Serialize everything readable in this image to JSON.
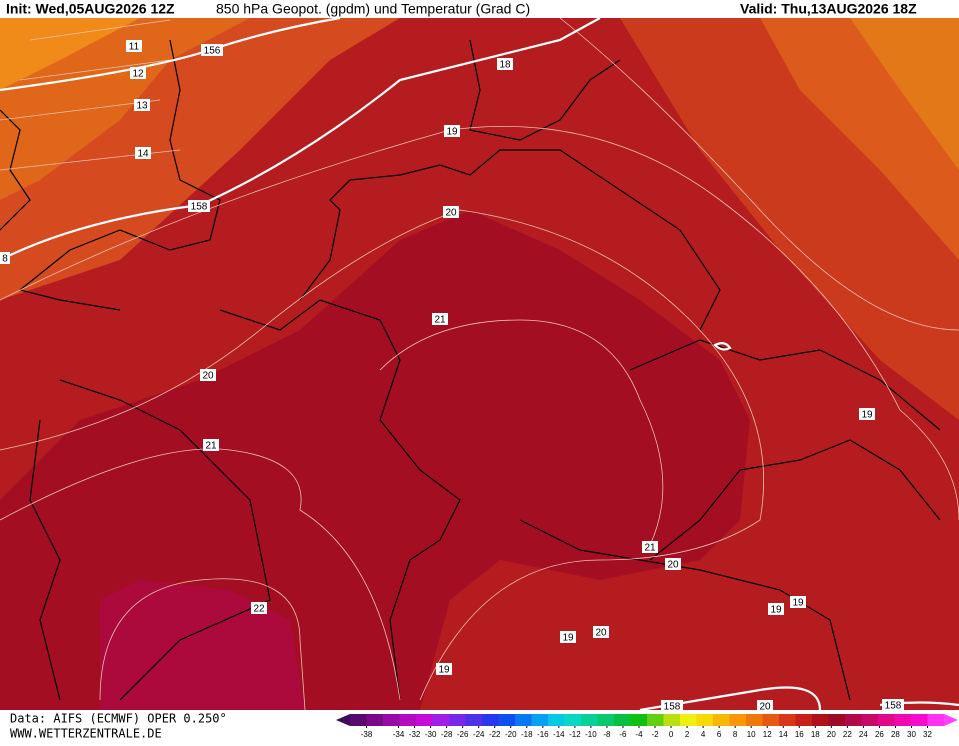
{
  "header": {
    "init": "Init: Wed,05AUG2026 12Z",
    "title": "850 hPa Geopot. (gpdm) und Temperatur (Grad C)",
    "valid": "Valid: Thu,13AUG2026 18Z"
  },
  "footer": {
    "source": "Data: AIFS (ECMWF) OPER 0.250°",
    "site": "WWW.WETTERZENTRALE.DE"
  },
  "legend": {
    "ticks": [
      -38,
      -34,
      -32,
      -30,
      -28,
      -26,
      -24,
      -22,
      -20,
      -18,
      -16,
      -14,
      -12,
      -10,
      -8,
      -6,
      -4,
      -2,
      0,
      2,
      4,
      6,
      8,
      10,
      12,
      14,
      16,
      18,
      20,
      22,
      24,
      26,
      28,
      30,
      32
    ]
  },
  "contour_labels": [
    "11",
    "12",
    "13",
    "14",
    "156",
    "158",
    "8",
    "18",
    "19",
    "20",
    "21",
    "20",
    "21",
    "19",
    "22",
    "21",
    "20",
    "19",
    "19",
    "20",
    "19",
    "19",
    "158",
    "20",
    "158"
  ]
}
